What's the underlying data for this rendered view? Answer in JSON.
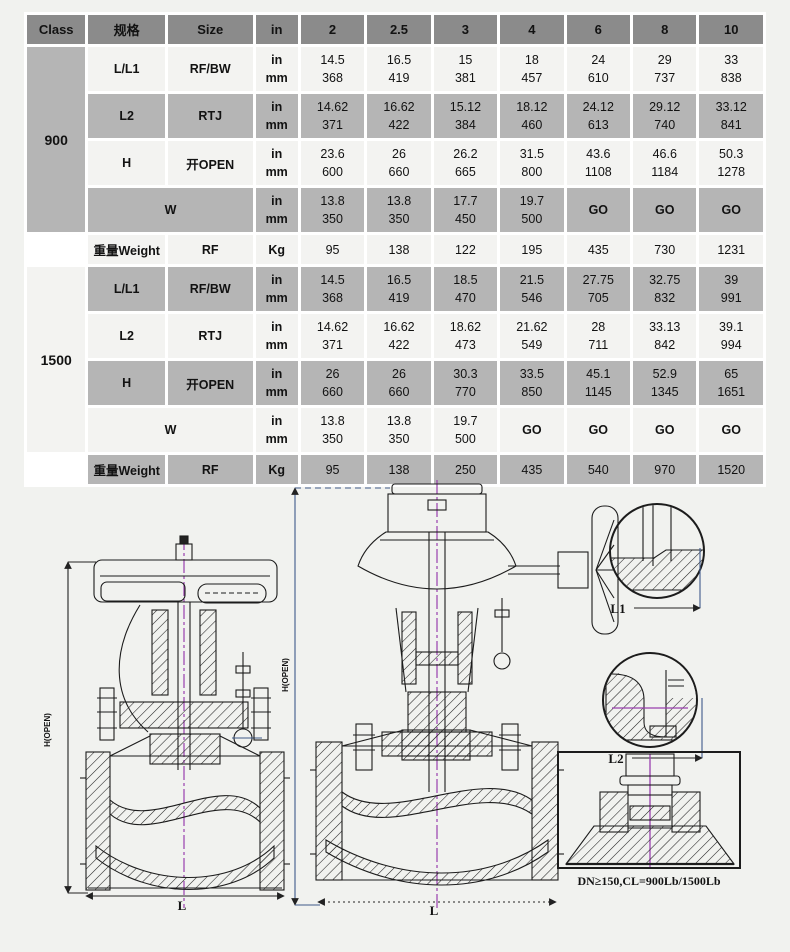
{
  "colors": {
    "page_bg": "#f1f2ef",
    "header_bg": "#8b8b8b",
    "row_gray": "#b5b5b5",
    "row_light": "#f3f3f1",
    "cell_gap": "#ffffff",
    "text": "#121212",
    "drawing_line": "#1c1c1c",
    "centerline": "#993fae"
  },
  "table": {
    "header": [
      "Class",
      "规格",
      "Size",
      "in",
      "2",
      "2.5",
      "3",
      "4",
      "6",
      "8",
      "10"
    ],
    "blocks": [
      {
        "class_label": "900",
        "class_shade": "gray",
        "rows": [
          {
            "dim": "L/L1",
            "type": "RF/BW",
            "shade": "light",
            "in": [
              "14.5",
              "16.5",
              "15",
              "18",
              "24",
              "29",
              "33"
            ],
            "mm": [
              "368",
              "419",
              "381",
              "457",
              "610",
              "737",
              "838"
            ]
          },
          {
            "dim": "L2",
            "type": "RTJ",
            "shade": "gray",
            "in": [
              "14.62",
              "16.62",
              "15.12",
              "18.12",
              "24.12",
              "29.12",
              "33.12"
            ],
            "mm": [
              "371",
              "422",
              "384",
              "460",
              "613",
              "740",
              "841"
            ]
          },
          {
            "dim": "H",
            "type": "开OPEN",
            "shade": "light",
            "in": [
              "23.6",
              "26",
              "26.2",
              "31.5",
              "43.6",
              "46.6",
              "50.3"
            ],
            "mm": [
              "600",
              "660",
              "665",
              "800",
              "1108",
              "1184",
              "1278"
            ]
          },
          {
            "dim": "W",
            "type": "",
            "shade": "gray",
            "in": [
              "13.8",
              "13.8",
              "17.7",
              "19.7",
              "GO",
              "GO",
              "GO"
            ],
            "mm": [
              "350",
              "350",
              "450",
              "500",
              "",
              "",
              ""
            ]
          }
        ],
        "weight": {
          "label": "重量Weight",
          "type": "RF",
          "unit": "Kg",
          "shade": "light",
          "values": [
            "95",
            "138",
            "122",
            "195",
            "435",
            "730",
            "1231"
          ]
        }
      },
      {
        "class_label": "1500",
        "class_shade": "light",
        "rows": [
          {
            "dim": "L/L1",
            "type": "RF/BW",
            "shade": "gray",
            "in": [
              "14.5",
              "16.5",
              "18.5",
              "21.5",
              "27.75",
              "32.75",
              "39"
            ],
            "mm": [
              "368",
              "419",
              "470",
              "546",
              "705",
              "832",
              "991"
            ]
          },
          {
            "dim": "L2",
            "type": "RTJ",
            "shade": "light",
            "in": [
              "14.62",
              "16.62",
              "18.62",
              "21.62",
              "28",
              "33.13",
              "39.1"
            ],
            "mm": [
              "371",
              "422",
              "473",
              "549",
              "711",
              "842",
              "994"
            ]
          },
          {
            "dim": "H",
            "type": "开OPEN",
            "shade": "gray",
            "in": [
              "26",
              "26",
              "30.3",
              "33.5",
              "45.1",
              "52.9",
              "65"
            ],
            "mm": [
              "660",
              "660",
              "770",
              "850",
              "1145",
              "1345",
              "1651"
            ]
          },
          {
            "dim": "W",
            "type": "",
            "shade": "light",
            "in": [
              "13.8",
              "13.8",
              "19.7",
              "GO",
              "GO",
              "GO",
              "GO"
            ],
            "mm": [
              "350",
              "350",
              "500",
              "",
              "",
              "",
              ""
            ]
          }
        ],
        "weight": {
          "label": "重量Weight",
          "type": "RF",
          "unit": "Kg",
          "shade": "gray",
          "values": [
            "95",
            "138",
            "250",
            "435",
            "540",
            "970",
            "1520"
          ]
        }
      }
    ]
  },
  "drawings": {
    "left_valve": {
      "height_label": "H(OPEN)",
      "length_label": "L"
    },
    "center_valve": {
      "height_label": "H(OPEN)",
      "length_label": "L"
    },
    "detail_l1": {
      "label": "L1"
    },
    "detail_l2": {
      "label": "L2"
    },
    "bottom_detail": {
      "caption": "DN≥150,CL=900Lb/1500Lb"
    }
  }
}
